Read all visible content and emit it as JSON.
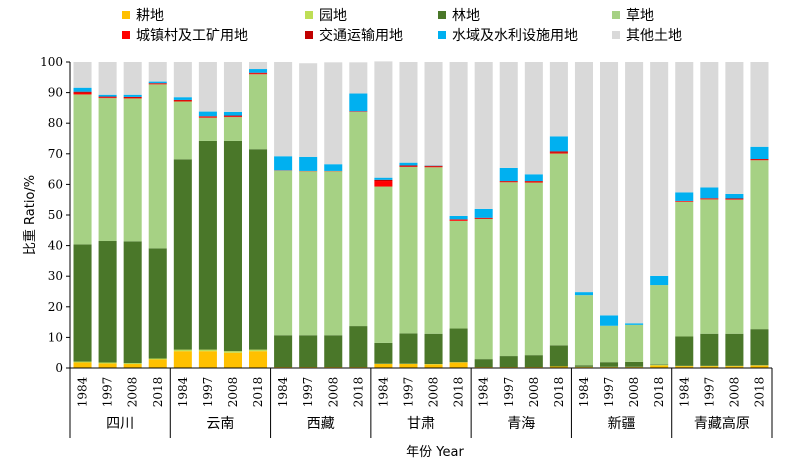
{
  "chart_data": {
    "type": "bar",
    "stacked": true,
    "xlabel": "年份 Year",
    "ylabel": "比重 Ratio/%",
    "ylim": [
      0,
      100
    ],
    "yticks": [
      0,
      10,
      20,
      30,
      40,
      50,
      60,
      70,
      80,
      90,
      100
    ],
    "grid": false,
    "legend_position": "top",
    "groups": [
      {
        "name": "四川",
        "years": [
          "1984",
          "1997",
          "2008",
          "2018"
        ]
      },
      {
        "name": "云南",
        "years": [
          "1984",
          "1997",
          "2008",
          "2018"
        ]
      },
      {
        "name": "西藏",
        "years": [
          "1984",
          "1997",
          "2008",
          "2018"
        ]
      },
      {
        "name": "甘肃",
        "years": [
          "1984",
          "1997",
          "2008",
          "2018"
        ]
      },
      {
        "name": "青海",
        "years": [
          "1984",
          "1997",
          "2008",
          "2018"
        ]
      },
      {
        "name": "新疆",
        "years": [
          "1984",
          "1997",
          "2008",
          "2018"
        ]
      },
      {
        "name": "青藏高原",
        "years": [
          "1984",
          "1997",
          "2008",
          "2018"
        ]
      }
    ],
    "series": [
      {
        "name": "耕地",
        "color": "#FFC000",
        "values": [
          1.8,
          1.5,
          1.3,
          2.8,
          5.5,
          5.5,
          5.0,
          5.5,
          0.3,
          0.3,
          0.3,
          0.3,
          1.3,
          1.3,
          1.2,
          1.8,
          0.3,
          0.3,
          0.3,
          0.5,
          0.3,
          0.3,
          0.3,
          0.8,
          0.6,
          0.6,
          0.6,
          0.8
        ]
      },
      {
        "name": "园地",
        "color": "#BEDE55",
        "values": [
          0.3,
          0.3,
          0.3,
          0.3,
          0.5,
          0.5,
          0.5,
          0.5,
          0,
          0,
          0,
          0,
          0.1,
          0.1,
          0.1,
          0.1,
          0,
          0,
          0,
          0,
          0.1,
          0.1,
          0.1,
          0.2,
          0.1,
          0.1,
          0.1,
          0.1
        ]
      },
      {
        "name": "林地",
        "color": "#4A7729",
        "values": [
          38.3,
          39.7,
          39.8,
          36.0,
          62.2,
          68.2,
          68.7,
          65.5,
          10.4,
          10.4,
          10.4,
          13.4,
          6.8,
          9.9,
          9.9,
          11.0,
          2.6,
          3.6,
          3.9,
          6.9,
          0.5,
          1.5,
          1.6,
          0.2,
          9.6,
          10.5,
          10.5,
          11.8
        ]
      },
      {
        "name": "草地",
        "color": "#A6D184",
        "values": [
          49.0,
          46.7,
          46.7,
          53.6,
          18.9,
          7.6,
          7.8,
          24.5,
          53.8,
          53.6,
          53.6,
          70.0,
          51.1,
          54.4,
          54.4,
          35.2,
          45.8,
          56.8,
          56.4,
          62.7,
          22.9,
          11.9,
          12.1,
          25.9,
          44.0,
          43.9,
          43.8,
          55.2
        ]
      },
      {
        "name": "城镇村及工矿用地",
        "color": "#FF0000",
        "values": [
          0.5,
          0.3,
          0.3,
          0.2,
          0.3,
          0.3,
          0.3,
          0.3,
          0.05,
          0.05,
          0.05,
          0.1,
          1.8,
          0.2,
          0.2,
          0.3,
          0.2,
          0.2,
          0.3,
          0.3,
          0,
          0,
          0,
          0,
          0.2,
          0.2,
          0.2,
          0.2
        ]
      },
      {
        "name": "交通运输用地",
        "color": "#C00000",
        "values": [
          0.4,
          0.2,
          0.2,
          0.2,
          0.2,
          0.2,
          0.2,
          0.2,
          0.05,
          0.05,
          0.05,
          0.1,
          0.4,
          0.3,
          0.3,
          0.2,
          0.2,
          0.2,
          0.2,
          0.4,
          0,
          0,
          0,
          0,
          0.1,
          0.2,
          0.2,
          0.2
        ]
      },
      {
        "name": "水域及水利设施用地",
        "color": "#00B0F0",
        "values": [
          1.3,
          0.6,
          0.7,
          0.5,
          0.9,
          1.5,
          1.2,
          1.2,
          4.6,
          4.6,
          2.2,
          5.8,
          0.7,
          0.9,
          0.1,
          1.1,
          2.9,
          4.3,
          2.2,
          4.9,
          1.0,
          3.4,
          0.5,
          3.0,
          2.8,
          3.5,
          1.5,
          4.0
        ]
      },
      {
        "name": "其他土地",
        "color": "#D9D9D9",
        "values": [
          8.4,
          10.7,
          10.7,
          6.4,
          11.5,
          16.2,
          16.3,
          2.3,
          30.8,
          30.6,
          33.3,
          10.2,
          38.0,
          32.9,
          33.8,
          50.3,
          48.0,
          34.6,
          36.7,
          24.3,
          75.2,
          82.8,
          85.4,
          69.9,
          42.6,
          41.0,
          43.1,
          27.7
        ]
      }
    ]
  }
}
